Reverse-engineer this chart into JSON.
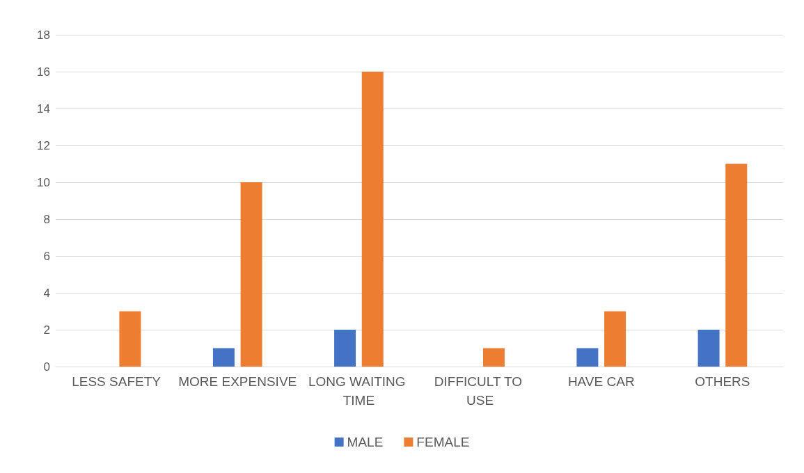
{
  "chart_data": {
    "type": "bar",
    "categories": [
      "LESS SAFETY",
      "MORE EXPENSIVE",
      "LONG WAITING TIME",
      "DIFFICULT TO USE",
      "HAVE CAR",
      "OTHERS"
    ],
    "series": [
      {
        "name": "MALE",
        "color": "#4472c4",
        "values": [
          0,
          1,
          2,
          0,
          1,
          2
        ]
      },
      {
        "name": "FEMALE",
        "color": "#ed7d31",
        "values": [
          3,
          10,
          16,
          1,
          3,
          11
        ]
      }
    ],
    "ylim": [
      0,
      18
    ],
    "yticks": [
      0,
      2,
      4,
      6,
      8,
      10,
      12,
      14,
      16,
      18
    ],
    "grid": "y",
    "legend": "bottom"
  }
}
